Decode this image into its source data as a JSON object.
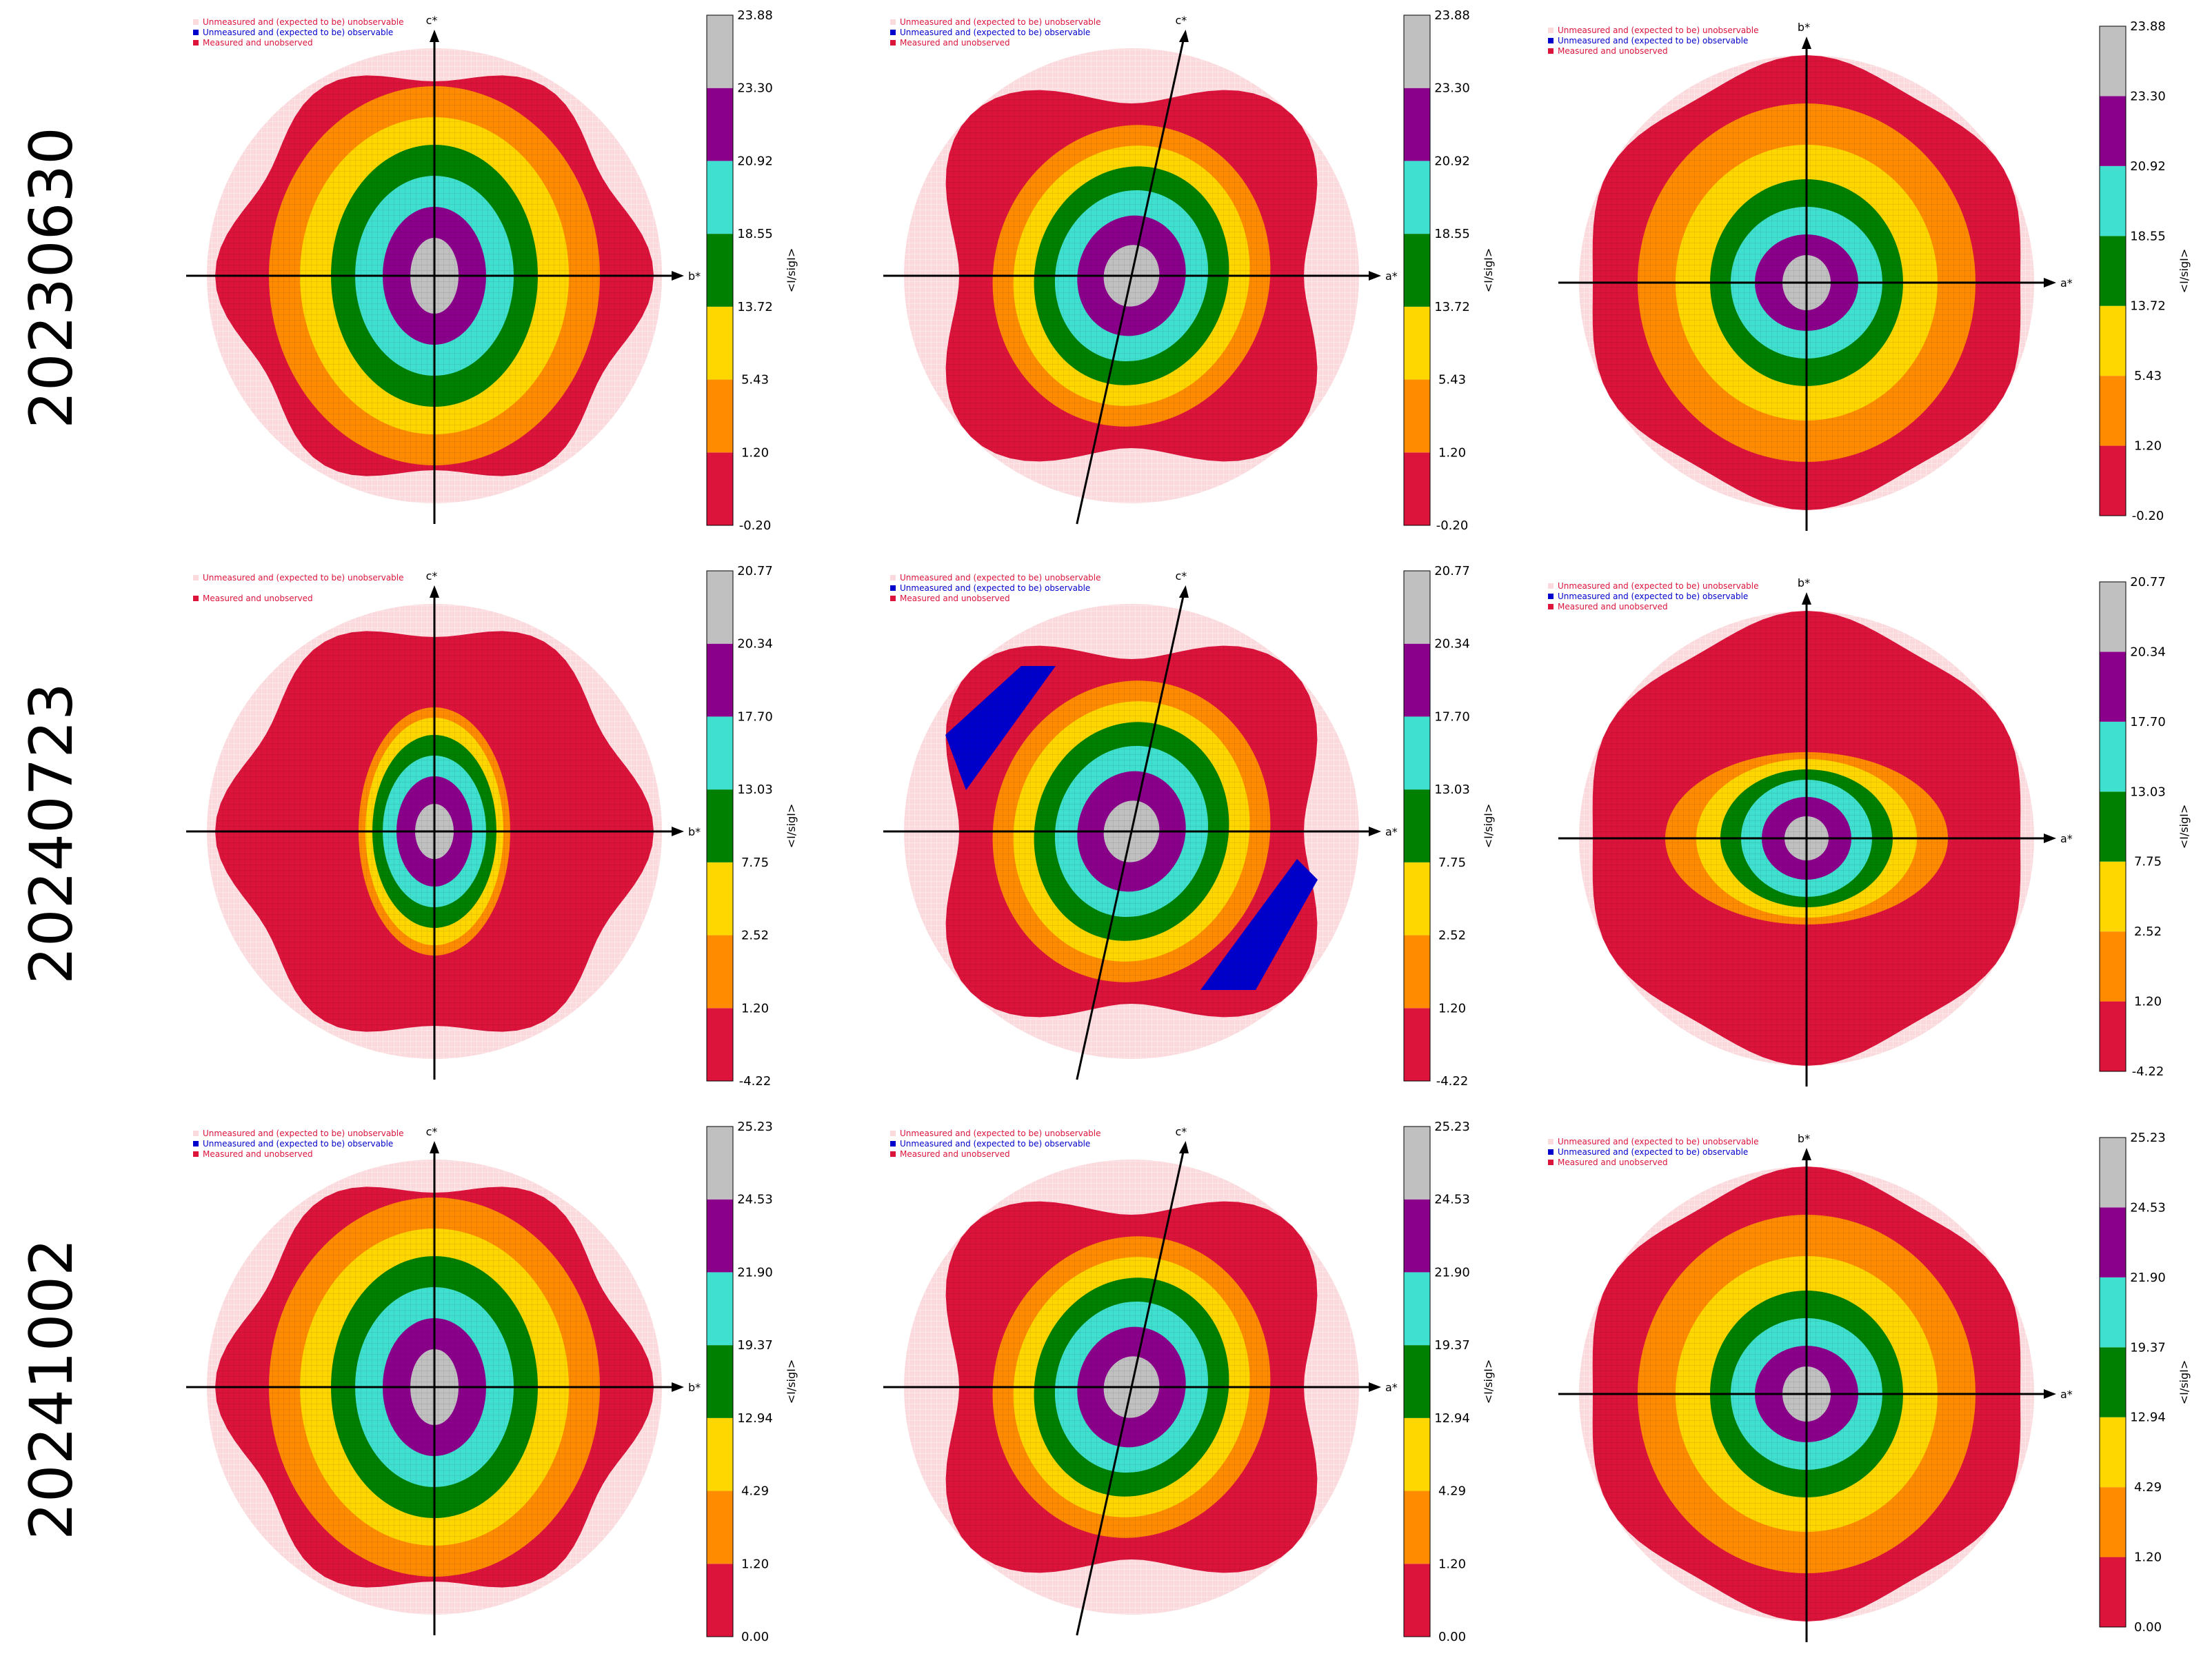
{
  "palette": {
    "colors": [
      "#DC143C",
      "#FF8C00",
      "#FFD700",
      "#008000",
      "#40E0D0",
      "#8B008B",
      "#C0C0C0"
    ],
    "unobservable": "#FADADD",
    "observable": "#0000CD",
    "axis": "#000000"
  },
  "legend": {
    "unobservable": "Unmeasured and (expected to be) unobservable",
    "observable": "Unmeasured and (expected to be) observable",
    "unobserved": "Measured and unobserved"
  },
  "colorbar_label": "<I/sigI>",
  "rows": [
    {
      "label": "20230630",
      "ticks": [
        "23.88",
        "23.30",
        "20.92",
        "18.55",
        "13.72",
        "5.43",
        "1.20",
        "-0.20"
      ],
      "panels": [
        {
          "vertical_axis": "c*",
          "horizontal_axis": "b*",
          "legend_observable": true
        },
        {
          "vertical_axis": "c*",
          "horizontal_axis": "a*",
          "legend_observable": true
        },
        {
          "vertical_axis": "b*",
          "horizontal_axis": "a*",
          "legend_observable": true
        }
      ]
    },
    {
      "label": "20240723",
      "ticks": [
        "20.77",
        "20.34",
        "17.70",
        "13.03",
        "7.75",
        "2.52",
        "1.20",
        "-4.22"
      ],
      "panels": [
        {
          "vertical_axis": "c*",
          "horizontal_axis": "b*",
          "legend_observable": false
        },
        {
          "vertical_axis": "c*",
          "horizontal_axis": "a*",
          "legend_observable": true
        },
        {
          "vertical_axis": "b*",
          "horizontal_axis": "a*",
          "legend_observable": true
        }
      ]
    },
    {
      "label": "20241002",
      "ticks": [
        "25.23",
        "24.53",
        "21.90",
        "19.37",
        "12.94",
        "4.29",
        "1.20",
        "0.00"
      ],
      "panels": [
        {
          "vertical_axis": "c*",
          "horizontal_axis": "b*",
          "legend_observable": true
        },
        {
          "vertical_axis": "c*",
          "horizontal_axis": "a*",
          "legend_observable": true
        },
        {
          "vertical_axis": "b*",
          "horizontal_axis": "a*",
          "legend_observable": true
        }
      ]
    }
  ],
  "chart_data": {
    "type": "heatmap",
    "description_of_axes": "reciprocal-space slices; color = <I/sigI> bin",
    "colorbar_label": "<I/sigI>",
    "bin_colors": [
      "#DC143C",
      "#FF8C00",
      "#FFD700",
      "#008000",
      "#40E0D0",
      "#8B008B",
      "#C0C0C0"
    ],
    "rows": [
      {
        "label": "20230630",
        "bin_edges": [
          -0.2,
          1.2,
          5.43,
          13.72,
          18.55,
          20.92,
          23.3,
          23.88
        ]
      },
      {
        "label": "20240723",
        "bin_edges": [
          -4.22,
          1.2,
          2.52,
          7.75,
          13.03,
          17.7,
          20.34,
          20.77
        ]
      },
      {
        "label": "20241002",
        "bin_edges": [
          0.0,
          1.2,
          4.29,
          12.94,
          19.37,
          21.9,
          24.53,
          25.23
        ]
      }
    ],
    "panel_axes": [
      [
        "c*",
        "b*"
      ],
      [
        "c*",
        "a*"
      ],
      [
        "b*",
        "a*"
      ]
    ]
  }
}
